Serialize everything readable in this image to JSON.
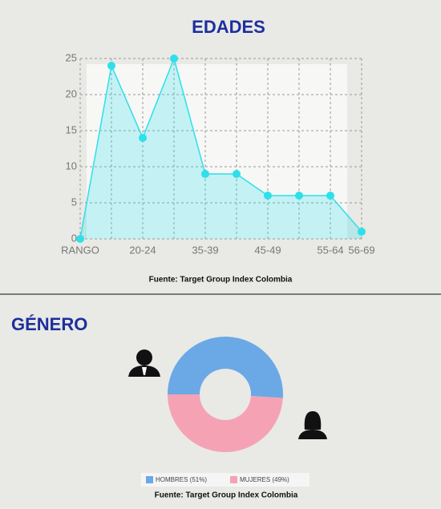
{
  "chart_data": [
    {
      "type": "area",
      "title": "EDADES",
      "categories": [
        "RANGO",
        null,
        "20-24",
        null,
        "35-39",
        null,
        "45-49",
        null,
        "55-64",
        "56-69"
      ],
      "series": [
        {
          "name": "EDADES",
          "color": "#2de0ea",
          "values": [
            0,
            24,
            14,
            25,
            9,
            9,
            6,
            6,
            6,
            1
          ]
        }
      ],
      "ylim": [
        0,
        25
      ],
      "yticks": [
        0,
        5,
        10,
        15,
        20,
        25
      ],
      "grid": true,
      "source": "Fuente: Target Group Index Colombia"
    },
    {
      "type": "donut",
      "title": "GÉNERO",
      "series": [
        {
          "name": "HOMBRES (51%)",
          "color": "#6aa9e6",
          "value": 51
        },
        {
          "name": "MUJERES (49%)",
          "color": "#f5a3b4",
          "value": 49
        }
      ],
      "source": "Fuente: Target Group Index Colombia"
    }
  ]
}
